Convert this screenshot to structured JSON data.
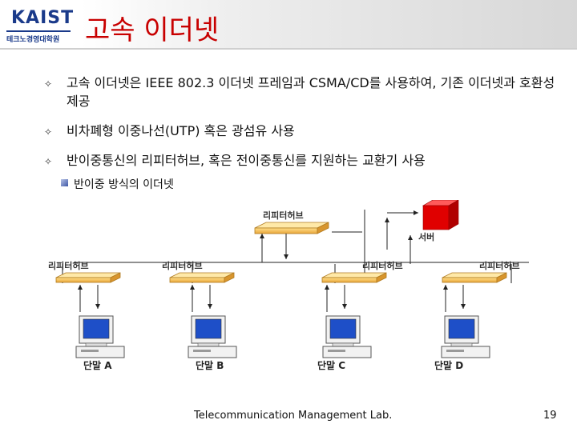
{
  "header": {
    "title": "고속 이더넷",
    "logo_main": "KAIST",
    "logo_sub": "테크노경영대학원"
  },
  "bullets": [
    "고속 이더넷은 IEEE 802.3 이더넷 프레임과 CSMA/CD를 사용하여, 기존 이더넷과 호환성 제공",
    "비차폐형 이중나선(UTP) 혹은 광섬유 사용",
    "반이중통신의 리피터허브, 혹은 전이중통신를 지원하는 교환기 사용"
  ],
  "sub_bullet": "반이중 방식의 이더넷",
  "diagram": {
    "top_hub_label": "리피터허브",
    "server_label": "서버",
    "hubs": [
      "리피터허브",
      "리피터허브",
      "리피터허브",
      "리피터허브"
    ],
    "terminals": [
      "단말 A",
      "단말 B",
      "단말 C",
      "단말 D"
    ]
  },
  "footer": {
    "lab": "Telecommunication Management Lab.",
    "page": "19"
  },
  "colors": {
    "title": "#c80000",
    "hub": "#f0b84a",
    "server": "#e00000",
    "logo": "#1a3a8a"
  }
}
